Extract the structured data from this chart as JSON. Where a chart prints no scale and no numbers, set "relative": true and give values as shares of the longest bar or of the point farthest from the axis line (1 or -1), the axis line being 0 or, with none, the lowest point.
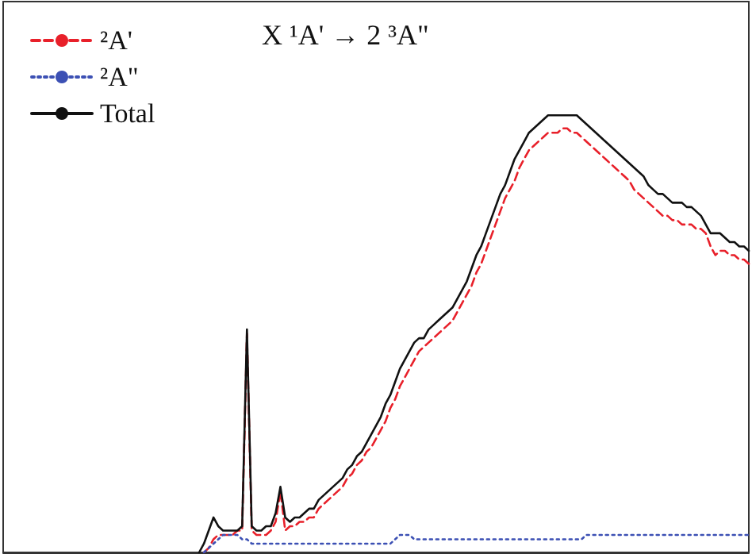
{
  "chart_data": {
    "type": "line",
    "title": "X ¹A' → 2 ³A\"",
    "relative": true,
    "legend": "top left",
    "grid": false,
    "categories": [
      null,
      null,
      null,
      null,
      null,
      null,
      null,
      null,
      null,
      null,
      null,
      null,
      null,
      null,
      null,
      null,
      null,
      null,
      null,
      null,
      null,
      null,
      null,
      null,
      null,
      null,
      null,
      null,
      null,
      null,
      null,
      null,
      null,
      null,
      null,
      null,
      null,
      null,
      null,
      null,
      null,
      null,
      null,
      null,
      null,
      null,
      null,
      null,
      null,
      null,
      null,
      null,
      null,
      null,
      null,
      null,
      null,
      null,
      null,
      null,
      null,
      null,
      null,
      null,
      null,
      null,
      null,
      null,
      null,
      null,
      null,
      null,
      null,
      null,
      null,
      null,
      null,
      null,
      null,
      null,
      null,
      null,
      null,
      null,
      null,
      null,
      null,
      null,
      null,
      null,
      null,
      null,
      null,
      null,
      null,
      null,
      null,
      null,
      null,
      null,
      null,
      null,
      null,
      null,
      null,
      null,
      null,
      null,
      null,
      null,
      null,
      null,
      null,
      null,
      null,
      null,
      null,
      null,
      null,
      null,
      null,
      null,
      null,
      null,
      null,
      null,
      null,
      null,
      null,
      null,
      null,
      null,
      null,
      null,
      null,
      null,
      null,
      null,
      null,
      null,
      null,
      null,
      null,
      null,
      null,
      null,
      null,
      null,
      null,
      null,
      null,
      null,
      null,
      null,
      null,
      null,
      null
    ],
    "series": [
      {
        "name": "²A'",
        "color": "#e8202a",
        "line_style": "dashed",
        "values": [
          null,
          null,
          null,
          null,
          null,
          null,
          null,
          null,
          null,
          null,
          null,
          null,
          null,
          null,
          null,
          null,
          null,
          null,
          null,
          null,
          null,
          null,
          null,
          null,
          null,
          null,
          null,
          null,
          null,
          null,
          null,
          null,
          null,
          null,
          null,
          null,
          null,
          null,
          null,
          null,
          null,
          null,
          0,
          0.01,
          0.03,
          0.04,
          0.04,
          0.04,
          0.04,
          0.05,
          0.05,
          0.5,
          0.05,
          0.04,
          0.04,
          0.04,
          0.05,
          0.07,
          0.14,
          0.05,
          0.06,
          0.06,
          0.07,
          0.07,
          0.08,
          0.08,
          0.1,
          0.11,
          0.12,
          0.13,
          0.14,
          0.15,
          0.17,
          0.18,
          0.2,
          0.21,
          0.23,
          0.24,
          0.26,
          0.28,
          0.3,
          0.33,
          0.35,
          0.38,
          0.4,
          0.42,
          0.44,
          0.46,
          0.47,
          0.48,
          0.49,
          0.5,
          0.51,
          0.52,
          0.53,
          0.55,
          0.57,
          0.59,
          0.61,
          0.64,
          0.66,
          0.69,
          0.72,
          0.75,
          0.78,
          0.81,
          0.83,
          0.85,
          0.88,
          0.9,
          0.92,
          0.93,
          0.94,
          0.95,
          0.96,
          0.96,
          0.96,
          0.97,
          0.97,
          0.96,
          0.96,
          0.95,
          0.94,
          0.93,
          0.92,
          0.91,
          0.9,
          0.89,
          0.88,
          0.87,
          0.86,
          0.85,
          0.83,
          0.82,
          0.81,
          0.8,
          0.79,
          0.78,
          0.77,
          0.77,
          0.76,
          0.76,
          0.75,
          0.75,
          0.75,
          0.74,
          0.74,
          0.73,
          0.7,
          0.68,
          0.69,
          0.69,
          0.68,
          0.68,
          0.67,
          0.67,
          0.66
        ]
      },
      {
        "name": "²A\"",
        "color": "#3c50b4",
        "line_style": "dotted",
        "values": [
          null,
          null,
          null,
          null,
          null,
          null,
          null,
          null,
          null,
          null,
          null,
          null,
          null,
          null,
          null,
          null,
          null,
          null,
          null,
          null,
          null,
          null,
          null,
          null,
          null,
          null,
          null,
          null,
          null,
          null,
          null,
          null,
          null,
          null,
          null,
          null,
          null,
          null,
          null,
          null,
          null,
          null,
          0,
          0.01,
          0.02,
          0.03,
          0.04,
          0.04,
          0.04,
          0.04,
          0.03,
          0.03,
          0.02,
          0.02,
          0.02,
          0.02,
          0.02,
          0.02,
          0.02,
          0.02,
          0.02,
          0.02,
          0.02,
          0.02,
          0.02,
          0.02,
          0.02,
          0.02,
          0.02,
          0.02,
          0.02,
          0.02,
          0.02,
          0.02,
          0.02,
          0.02,
          0.02,
          0.02,
          0.02,
          0.02,
          0.02,
          0.02,
          0.03,
          0.04,
          0.04,
          0.04,
          0.03,
          0.03,
          0.03,
          0.03,
          0.03,
          0.03,
          0.03,
          0.03,
          0.03,
          0.03,
          0.03,
          0.03,
          0.03,
          0.03,
          0.03,
          0.03,
          0.03,
          0.03,
          0.03,
          0.03,
          0.03,
          0.03,
          0.03,
          0.03,
          0.03,
          0.03,
          0.03,
          0.03,
          0.03,
          0.03,
          0.03,
          0.03,
          0.03,
          0.03,
          0.03,
          0.03,
          0.04,
          0.04,
          0.04,
          0.04,
          0.04,
          0.04,
          0.04,
          0.04,
          0.04,
          0.04,
          0.04,
          0.04,
          0.04,
          0.04,
          0.04,
          0.04,
          0.04,
          0.04,
          0.04,
          0.04,
          0.04,
          0.04,
          0.04,
          0.04,
          0.04,
          0.04,
          0.04,
          0.04,
          0.04,
          0.04,
          0.04,
          0.04,
          0.04,
          0.04,
          0.04
        ]
      },
      {
        "name": "Total",
        "color": "#111111",
        "line_style": "solid",
        "values": [
          null,
          null,
          null,
          null,
          null,
          null,
          null,
          null,
          null,
          null,
          null,
          null,
          null,
          null,
          null,
          null,
          null,
          null,
          null,
          null,
          null,
          null,
          null,
          null,
          null,
          null,
          null,
          null,
          null,
          null,
          null,
          null,
          null,
          null,
          null,
          null,
          null,
          null,
          null,
          null,
          null,
          0,
          0.02,
          0.05,
          0.08,
          0.06,
          0.05,
          0.05,
          0.05,
          0.05,
          0.06,
          0.51,
          0.06,
          0.05,
          0.05,
          0.06,
          0.06,
          0.09,
          0.15,
          0.08,
          0.07,
          0.08,
          0.08,
          0.09,
          0.1,
          0.1,
          0.12,
          0.13,
          0.14,
          0.15,
          0.16,
          0.17,
          0.19,
          0.2,
          0.22,
          0.23,
          0.25,
          0.27,
          0.29,
          0.31,
          0.34,
          0.36,
          0.39,
          0.42,
          0.44,
          0.46,
          0.48,
          0.49,
          0.49,
          0.51,
          0.52,
          0.53,
          0.54,
          0.55,
          0.56,
          0.58,
          0.6,
          0.62,
          0.65,
          0.68,
          0.7,
          0.73,
          0.76,
          0.79,
          0.82,
          0.84,
          0.87,
          0.9,
          0.92,
          0.94,
          0.96,
          0.97,
          0.98,
          0.99,
          1,
          1,
          1,
          1,
          1,
          1,
          1,
          0.99,
          0.98,
          0.97,
          0.96,
          0.95,
          0.94,
          0.93,
          0.92,
          0.91,
          0.9,
          0.89,
          0.88,
          0.87,
          0.86,
          0.84,
          0.83,
          0.82,
          0.82,
          0.81,
          0.8,
          0.8,
          0.8,
          0.79,
          0.79,
          0.78,
          0.77,
          0.75,
          0.73,
          0.73,
          0.73,
          0.72,
          0.71,
          0.71,
          0.7,
          0.7,
          0.69
        ]
      }
    ]
  }
}
